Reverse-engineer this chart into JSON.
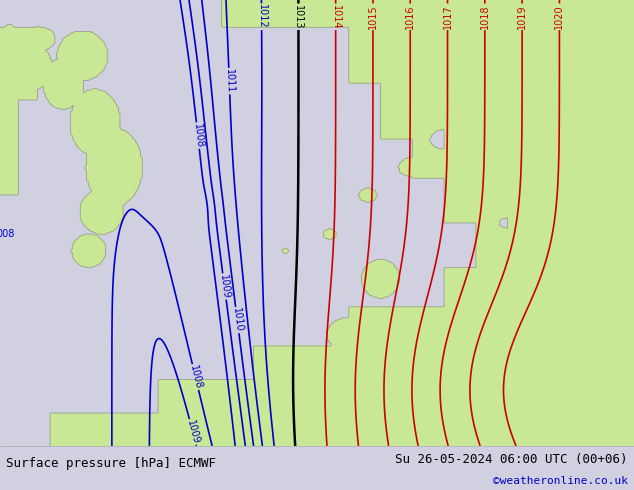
{
  "bottom_left_text": "Surface pressure [hPa] ECMWF",
  "bottom_right_text": "Su 26-05-2024 06:00 UTC (00+06)",
  "bottom_credit": "©weatheronline.co.uk",
  "bg_land_color": "#c8e896",
  "bg_sea_color": "#d0d0e0",
  "contour_color_low": "#0000cc",
  "contour_color_high": "#cc0000",
  "contour_color_mid": "#000000",
  "border_color": "#909090",
  "text_color_bottom": "#000000",
  "credit_color": "#0000cc",
  "figsize": [
    6.34,
    4.9
  ],
  "dpi": 100,
  "font_size_bottom": 9,
  "font_size_credit": 8
}
